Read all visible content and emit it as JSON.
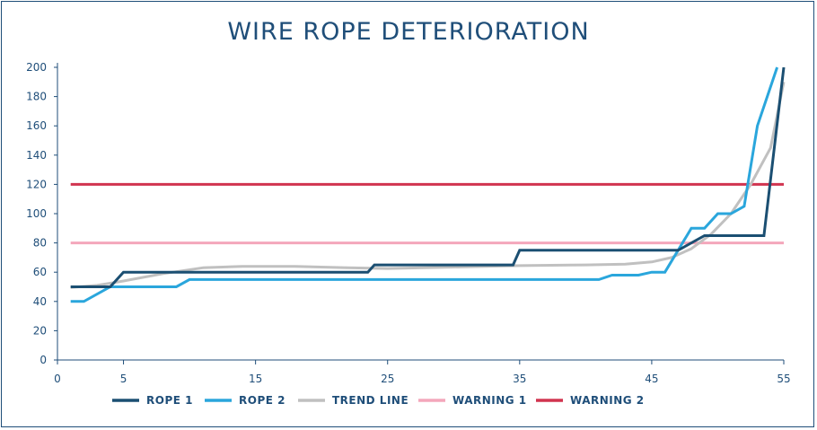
{
  "chart_data": {
    "type": "line",
    "title": "WIRE ROPE DETERIORATION",
    "xlim": [
      0,
      55
    ],
    "ylim": [
      0,
      200
    ],
    "xticks": [
      0,
      5,
      15,
      25,
      35,
      45,
      55
    ],
    "yticks": [
      0,
      20,
      40,
      60,
      80,
      100,
      120,
      140,
      160,
      180,
      200
    ],
    "grid": false,
    "legend_position": "bottom",
    "series": [
      {
        "name": "ROPE 1",
        "color": "#1b4f72",
        "x": [
          1,
          4,
          5,
          10,
          23.5,
          24,
          34.5,
          35,
          47,
          49,
          53.5,
          55
        ],
        "y": [
          50,
          50,
          60,
          60,
          60,
          65,
          65,
          75,
          75,
          85,
          85,
          200
        ]
      },
      {
        "name": "ROPE 2",
        "color": "#2aa6dc",
        "x": [
          1,
          2,
          4,
          9,
          10,
          41,
          42,
          44,
          45,
          46,
          48,
          49,
          50,
          51,
          52,
          53,
          54.5
        ],
        "y": [
          40,
          40,
          50,
          50,
          55,
          55,
          58,
          58,
          60,
          60,
          90,
          90,
          100,
          100,
          105,
          160,
          200
        ]
      },
      {
        "name": "TREND LINE",
        "color": "#c0c0c0",
        "x": [
          1,
          3,
          5,
          8,
          11,
          14,
          18,
          22,
          25,
          30,
          35,
          40,
          43,
          45,
          46.5,
          48,
          49.5,
          51,
          52.5,
          54,
          55
        ],
        "y": [
          49.5,
          51,
          54,
          59,
          63,
          64,
          64,
          63,
          62.5,
          63.5,
          64.5,
          65,
          65.5,
          67,
          70,
          76,
          86,
          100,
          120,
          145,
          190
        ]
      },
      {
        "name": "WARNING 1",
        "color": "#f4a7bb",
        "x": [
          1,
          55
        ],
        "y": [
          80,
          80
        ]
      },
      {
        "name": "WARNING 2",
        "color": "#d1344f",
        "x": [
          1,
          55
        ],
        "y": [
          120,
          120
        ]
      }
    ]
  }
}
